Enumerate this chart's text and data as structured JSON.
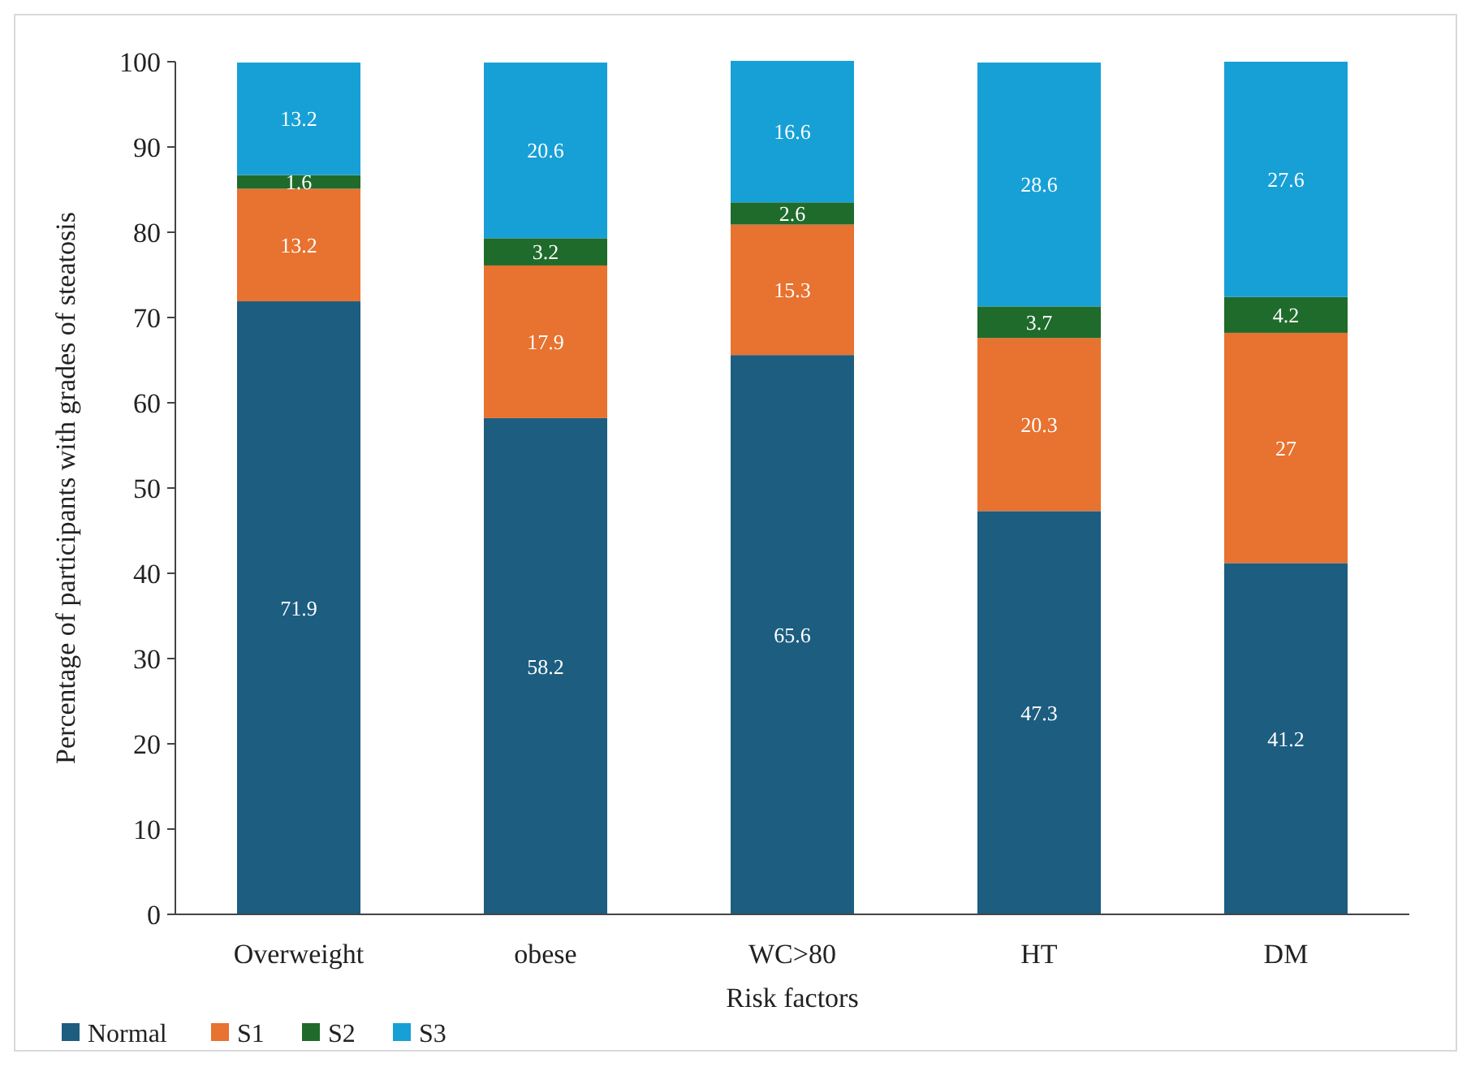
{
  "chart_data": {
    "type": "bar",
    "stacked": true,
    "xlabel": "Risk factors",
    "ylabel": "Percentage of participants with grades of steatosis",
    "categories": [
      "Overweight",
      "obese",
      "WC>80",
      "HT",
      "DM"
    ],
    "series": [
      {
        "name": "Normal",
        "color": "#1c5d80",
        "values": [
          71.9,
          58.2,
          65.6,
          47.3,
          41.2
        ]
      },
      {
        "name": "S1",
        "color": "#e8722f",
        "values": [
          13.2,
          17.9,
          15.3,
          20.3,
          27
        ]
      },
      {
        "name": "S2",
        "color": "#1f6b2b",
        "values": [
          1.6,
          3.2,
          2.6,
          3.7,
          4.2
        ]
      },
      {
        "name": "S3",
        "color": "#17a0d6",
        "values": [
          13.2,
          20.6,
          16.6,
          28.6,
          27.6
        ]
      }
    ],
    "ylim": [
      0,
      100
    ],
    "yticks": [
      0,
      10,
      20,
      30,
      40,
      50,
      60,
      70,
      80,
      90,
      100
    ],
    "data_labels": true,
    "legend": "bottom left",
    "grid": false
  }
}
